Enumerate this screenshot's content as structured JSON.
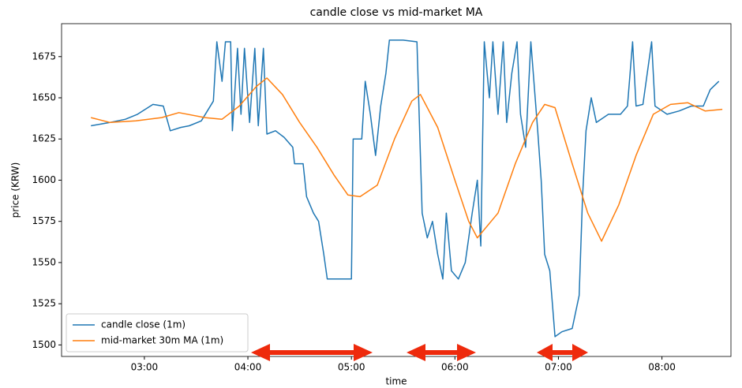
{
  "chart_data": {
    "type": "line",
    "title": "candle close vs mid-market MA",
    "xlabel": "time",
    "ylabel": "price (KRW)",
    "xlim": [
      132,
      520
    ],
    "xticks": [
      {
        "value": 180,
        "label": "03:00"
      },
      {
        "value": 240,
        "label": "04:00"
      },
      {
        "value": 300,
        "label": "05:00"
      },
      {
        "value": 360,
        "label": "06:00"
      },
      {
        "value": 420,
        "label": "07:00"
      },
      {
        "value": 480,
        "label": "08:00"
      }
    ],
    "ylim": [
      1493,
      1695
    ],
    "yticks": [
      1500,
      1525,
      1550,
      1575,
      1600,
      1625,
      1650,
      1675
    ],
    "legend": "lower left",
    "series": [
      {
        "name": "candle close (1m)",
        "color": "#1f77b4",
        "x": [
          149,
          160,
          169,
          176,
          185,
          191,
          195,
          201,
          206,
          213,
          220,
          222,
          225,
          227,
          230,
          231,
          234,
          236,
          238,
          241,
          244,
          246,
          249,
          251,
          256,
          261,
          266,
          267,
          272,
          274,
          278,
          281,
          284,
          286,
          293,
          300,
          301,
          306,
          308,
          311,
          314,
          317,
          320,
          322,
          330,
          338,
          341,
          344,
          347,
          350,
          353,
          355,
          358,
          362,
          366,
          370,
          373,
          375,
          377,
          380,
          382,
          385,
          388,
          390,
          393,
          396,
          398,
          401,
          404,
          408,
          410,
          412,
          415,
          418,
          422,
          428,
          432,
          434,
          436,
          439,
          442,
          449,
          456,
          460,
          463,
          465,
          469,
          474,
          476,
          483,
          490,
          497,
          504,
          508,
          513
        ],
        "values": [
          1633,
          1635,
          1637,
          1640,
          1646,
          1645,
          1630,
          1632,
          1633,
          1636,
          1648,
          1684,
          1660,
          1684,
          1684,
          1630,
          1680,
          1640,
          1680,
          1635,
          1680,
          1633,
          1680,
          1628,
          1630,
          1626,
          1620,
          1610,
          1610,
          1590,
          1580,
          1575,
          1555,
          1540,
          1540,
          1540,
          1625,
          1625,
          1660,
          1640,
          1615,
          1645,
          1665,
          1685,
          1685,
          1684,
          1580,
          1565,
          1575,
          1555,
          1540,
          1580,
          1545,
          1540,
          1550,
          1580,
          1600,
          1560,
          1684,
          1650,
          1684,
          1640,
          1684,
          1635,
          1665,
          1684,
          1640,
          1620,
          1684,
          1630,
          1600,
          1555,
          1545,
          1505,
          1508,
          1510,
          1530,
          1590,
          1630,
          1650,
          1635,
          1640,
          1640,
          1645,
          1684,
          1645,
          1646,
          1684,
          1645,
          1640,
          1642,
          1645,
          1645,
          1655,
          1660
        ]
      },
      {
        "name": "mid-market 30m MA (1m)",
        "color": "#ff7f0e",
        "x": [
          149,
          160,
          175,
          190,
          200,
          215,
          225,
          235,
          245,
          251,
          260,
          270,
          280,
          290,
          298,
          305,
          315,
          325,
          335,
          340,
          350,
          360,
          368,
          373,
          385,
          395,
          405,
          412,
          418,
          428,
          437,
          445,
          455,
          465,
          475,
          485,
          495,
          505,
          515
        ],
        "values": [
          1638,
          1635,
          1636,
          1638,
          1641,
          1638,
          1637,
          1645,
          1657,
          1662,
          1652,
          1635,
          1620,
          1603,
          1591,
          1590,
          1597,
          1625,
          1648,
          1652,
          1632,
          1600,
          1575,
          1565,
          1580,
          1610,
          1635,
          1646,
          1644,
          1610,
          1580,
          1563,
          1585,
          1615,
          1640,
          1646,
          1647,
          1642,
          1643
        ]
      }
    ]
  }
}
